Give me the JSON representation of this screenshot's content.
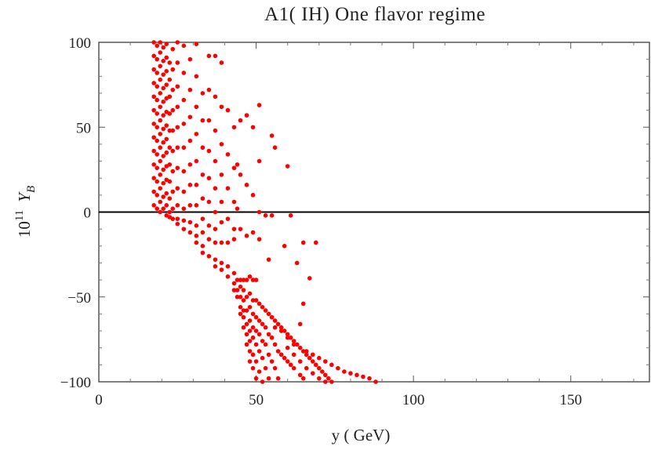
{
  "chart_data": {
    "type": "scatter",
    "title": "A1( IH)  One flavor regime",
    "xlabel": "y  ( GeV)",
    "ylabel_base": "10",
    "ylabel_exp": "11",
    "ylabel_var": "Y",
    "ylabel_sub": "B",
    "xlim": [
      0,
      175
    ],
    "ylim": [
      -100,
      100
    ],
    "x_ticks": [
      0,
      50,
      100,
      150
    ],
    "x_tick_labels": [
      "0",
      "50",
      "100",
      "150"
    ],
    "y_ticks": [
      -100,
      -50,
      0,
      50,
      100
    ],
    "y_tick_labels": [
      "−100",
      "−50",
      "0",
      "50",
      "100"
    ],
    "zero_line": true,
    "grid": false,
    "marker_color": "#ff0000",
    "series": [
      {
        "points": [
          [
            17.5,
            100
          ],
          [
            17.5,
            92
          ],
          [
            17.5,
            84
          ],
          [
            17.5,
            76
          ],
          [
            17.5,
            68
          ],
          [
            17.5,
            60
          ],
          [
            17.5,
            52
          ],
          [
            17.5,
            44
          ],
          [
            17.5,
            36
          ],
          [
            17.5,
            28
          ],
          [
            17.5,
            20
          ],
          [
            17.5,
            12
          ],
          [
            17.5,
            4
          ],
          [
            18.5,
            98
          ],
          [
            18.5,
            90
          ],
          [
            18.5,
            82
          ],
          [
            18.5,
            74
          ],
          [
            18.5,
            66
          ],
          [
            18.5,
            58
          ],
          [
            18.5,
            50
          ],
          [
            18.5,
            42
          ],
          [
            18.5,
            34
          ],
          [
            18.5,
            26
          ],
          [
            18.5,
            18
          ],
          [
            18.5,
            10
          ],
          [
            18.5,
            2
          ],
          [
            19.5,
            100
          ],
          [
            19.5,
            94
          ],
          [
            19.5,
            86
          ],
          [
            19.5,
            78
          ],
          [
            19.5,
            70
          ],
          [
            19.5,
            62
          ],
          [
            19.5,
            54
          ],
          [
            19.5,
            46
          ],
          [
            19.5,
            38
          ],
          [
            19.5,
            30
          ],
          [
            19.5,
            22
          ],
          [
            19.5,
            14
          ],
          [
            19.5,
            6
          ],
          [
            19.5,
            0
          ],
          [
            20.5,
            97
          ],
          [
            20.5,
            89
          ],
          [
            20.5,
            81
          ],
          [
            20.5,
            73
          ],
          [
            20.5,
            65
          ],
          [
            20.5,
            57
          ],
          [
            20.5,
            49
          ],
          [
            20.5,
            41
          ],
          [
            20.5,
            33
          ],
          [
            20.5,
            25
          ],
          [
            20.5,
            17
          ],
          [
            20.5,
            9
          ],
          [
            20.5,
            2
          ],
          [
            21.5,
            99
          ],
          [
            21.5,
            91
          ],
          [
            21.5,
            83
          ],
          [
            21.5,
            75
          ],
          [
            21.5,
            67
          ],
          [
            21.5,
            59
          ],
          [
            21.5,
            51
          ],
          [
            21.5,
            43
          ],
          [
            21.5,
            35
          ],
          [
            21.5,
            27
          ],
          [
            21.5,
            19
          ],
          [
            21.5,
            11
          ],
          [
            21.5,
            4
          ],
          [
            21.5,
            -2
          ],
          [
            22.5,
            88
          ],
          [
            22.5,
            78
          ],
          [
            22.5,
            68
          ],
          [
            22.5,
            58
          ],
          [
            22.5,
            48
          ],
          [
            22.5,
            38
          ],
          [
            22.5,
            28
          ],
          [
            22.5,
            18
          ],
          [
            22.5,
            8
          ],
          [
            22.5,
            0
          ],
          [
            22.5,
            -3
          ],
          [
            23.5,
            96
          ],
          [
            23.5,
            84
          ],
          [
            23.5,
            72
          ],
          [
            23.5,
            60
          ],
          [
            23.5,
            48
          ],
          [
            23.5,
            36
          ],
          [
            23.5,
            24
          ],
          [
            23.5,
            12
          ],
          [
            23.5,
            2
          ],
          [
            23.5,
            -4
          ],
          [
            25,
            100
          ],
          [
            25,
            88
          ],
          [
            25,
            74
          ],
          [
            25,
            62
          ],
          [
            25,
            50
          ],
          [
            25,
            38
          ],
          [
            25,
            26
          ],
          [
            25,
            14
          ],
          [
            25,
            4
          ],
          [
            25,
            -4
          ],
          [
            25,
            -7
          ],
          [
            27,
            98
          ],
          [
            27,
            82
          ],
          [
            27,
            66
          ],
          [
            27,
            52
          ],
          [
            27,
            38
          ],
          [
            27,
            24
          ],
          [
            27,
            12
          ],
          [
            27,
            2
          ],
          [
            27,
            -5
          ],
          [
            27,
            -10
          ],
          [
            29,
            90
          ],
          [
            29,
            72
          ],
          [
            29,
            56
          ],
          [
            29,
            42
          ],
          [
            29,
            28
          ],
          [
            29,
            16
          ],
          [
            29,
            4
          ],
          [
            29,
            -6
          ],
          [
            29,
            -12
          ],
          [
            31,
            99
          ],
          [
            31,
            80
          ],
          [
            31,
            62
          ],
          [
            31,
            46
          ],
          [
            31,
            30
          ],
          [
            31,
            16
          ],
          [
            31,
            4
          ],
          [
            31,
            -8
          ],
          [
            31,
            -14
          ],
          [
            31,
            -18
          ],
          [
            33,
            70
          ],
          [
            33,
            54
          ],
          [
            33,
            38
          ],
          [
            33,
            22
          ],
          [
            33,
            8
          ],
          [
            33,
            -4
          ],
          [
            33,
            -12
          ],
          [
            33,
            -20
          ],
          [
            33,
            -24
          ],
          [
            35,
            92
          ],
          [
            35,
            72
          ],
          [
            35,
            54
          ],
          [
            35,
            36
          ],
          [
            35,
            20
          ],
          [
            35,
            6
          ],
          [
            35,
            -8
          ],
          [
            35,
            -16
          ],
          [
            35,
            -26
          ],
          [
            37,
            92
          ],
          [
            37,
            68
          ],
          [
            37,
            48
          ],
          [
            37,
            30
          ],
          [
            37,
            14
          ],
          [
            37,
            0
          ],
          [
            37,
            -10
          ],
          [
            37,
            -18
          ],
          [
            37,
            -28
          ],
          [
            37,
            -32
          ],
          [
            39,
            88
          ],
          [
            39,
            62
          ],
          [
            39,
            40
          ],
          [
            39,
            22
          ],
          [
            39,
            6
          ],
          [
            39,
            -6
          ],
          [
            39,
            -18
          ],
          [
            39,
            -30
          ],
          [
            39,
            -34
          ],
          [
            41,
            60
          ],
          [
            41,
            34
          ],
          [
            41,
            14
          ],
          [
            41,
            -4
          ],
          [
            41,
            -18
          ],
          [
            41,
            -32
          ],
          [
            41,
            -38
          ],
          [
            43,
            50
          ],
          [
            43,
            26
          ],
          [
            43,
            6
          ],
          [
            43,
            -10
          ],
          [
            43,
            -16
          ],
          [
            43,
            -36
          ],
          [
            43,
            -42
          ],
          [
            43,
            -46
          ],
          [
            44,
            28
          ],
          [
            44,
            2
          ],
          [
            44,
            -40
          ],
          [
            44,
            -46
          ],
          [
            44,
            -50
          ],
          [
            45,
            54
          ],
          [
            45,
            22
          ],
          [
            45,
            -10
          ],
          [
            45,
            -40
          ],
          [
            45,
            -44
          ],
          [
            45,
            -50
          ],
          [
            45,
            -56
          ],
          [
            45,
            -60
          ],
          [
            46,
            -40
          ],
          [
            46,
            -46
          ],
          [
            46,
            -52
          ],
          [
            46,
            -58
          ],
          [
            46,
            -62
          ],
          [
            46,
            -68
          ],
          [
            47,
            57
          ],
          [
            47,
            16
          ],
          [
            47,
            -14
          ],
          [
            47,
            -40
          ],
          [
            47,
            -50
          ],
          [
            47,
            -58
          ],
          [
            47,
            -66
          ],
          [
            47,
            -72
          ],
          [
            47,
            -78
          ],
          [
            48,
            -38
          ],
          [
            48,
            -48
          ],
          [
            48,
            -56
          ],
          [
            48,
            -64
          ],
          [
            48,
            -70
          ],
          [
            48,
            -76
          ],
          [
            48,
            -82
          ],
          [
            48,
            -88
          ],
          [
            49,
            50
          ],
          [
            49,
            10
          ],
          [
            49,
            -12
          ],
          [
            49,
            -40
          ],
          [
            49,
            -52
          ],
          [
            49,
            -60
          ],
          [
            49,
            -68
          ],
          [
            49,
            -74
          ],
          [
            49,
            -84
          ],
          [
            49,
            -92
          ],
          [
            50,
            -40
          ],
          [
            50,
            -52
          ],
          [
            50,
            -62
          ],
          [
            50,
            -70
          ],
          [
            50,
            -78
          ],
          [
            50,
            -88
          ],
          [
            50,
            -98
          ],
          [
            51,
            63
          ],
          [
            51,
            30
          ],
          [
            51,
            0
          ],
          [
            51,
            -16
          ],
          [
            51,
            -54
          ],
          [
            51,
            -64
          ],
          [
            51,
            -72
          ],
          [
            51,
            -82
          ],
          [
            51,
            -94
          ],
          [
            52,
            -56
          ],
          [
            52,
            -66
          ],
          [
            52,
            -76
          ],
          [
            52,
            -86
          ],
          [
            52,
            -100
          ],
          [
            53,
            -2
          ],
          [
            53,
            -58
          ],
          [
            53,
            -68
          ],
          [
            53,
            -78
          ],
          [
            53,
            -92
          ],
          [
            54,
            -28
          ],
          [
            54,
            -60
          ],
          [
            54,
            -72
          ],
          [
            54,
            -84
          ],
          [
            54,
            -98
          ],
          [
            55,
            45
          ],
          [
            55,
            -2
          ],
          [
            55,
            -62
          ],
          [
            55,
            -74
          ],
          [
            55,
            -88
          ],
          [
            56,
            38
          ],
          [
            56,
            -64
          ],
          [
            56,
            -78
          ],
          [
            56,
            -92
          ],
          [
            57,
            -66
          ],
          [
            57,
            -82
          ],
          [
            57,
            -98
          ],
          [
            58,
            -68
          ],
          [
            58,
            -84
          ],
          [
            59,
            -20
          ],
          [
            59,
            -70
          ],
          [
            59,
            -86
          ],
          [
            60,
            27
          ],
          [
            60,
            -72
          ],
          [
            60,
            -88
          ],
          [
            61,
            -2
          ],
          [
            61,
            -74
          ],
          [
            61,
            -90
          ],
          [
            62,
            -76
          ],
          [
            62,
            -92
          ],
          [
            63,
            -78
          ],
          [
            63,
            -30
          ],
          [
            64,
            -80
          ],
          [
            64,
            -96
          ],
          [
            64,
            -66
          ],
          [
            65,
            -18
          ],
          [
            65,
            -54
          ],
          [
            65,
            -82
          ],
          [
            65,
            -98
          ],
          [
            66,
            -84
          ],
          [
            67,
            -39
          ],
          [
            67,
            -86
          ],
          [
            68,
            -88
          ],
          [
            69,
            -18
          ],
          [
            69,
            -90
          ],
          [
            70,
            -92
          ],
          [
            71,
            -94
          ],
          [
            72,
            -96
          ],
          [
            73,
            -98
          ],
          [
            74,
            -100
          ],
          [
            56,
            -68
          ],
          [
            58,
            -70
          ],
          [
            60,
            -74
          ],
          [
            62,
            -78
          ],
          [
            66,
            -82
          ],
          [
            68,
            -84
          ],
          [
            70,
            -86
          ],
          [
            72,
            -88
          ],
          [
            74,
            -90
          ],
          [
            76,
            -92
          ],
          [
            78,
            -94
          ],
          [
            80,
            -95
          ],
          [
            82,
            -96
          ],
          [
            84,
            -97
          ],
          [
            86,
            -98
          ],
          [
            88,
            -100
          ],
          [
            60,
            -80
          ],
          [
            62,
            -84
          ],
          [
            64,
            -88
          ],
          [
            66,
            -92
          ],
          [
            68,
            -95
          ],
          [
            70,
            -98
          ],
          [
            72,
            -100
          ]
        ]
      }
    ]
  }
}
